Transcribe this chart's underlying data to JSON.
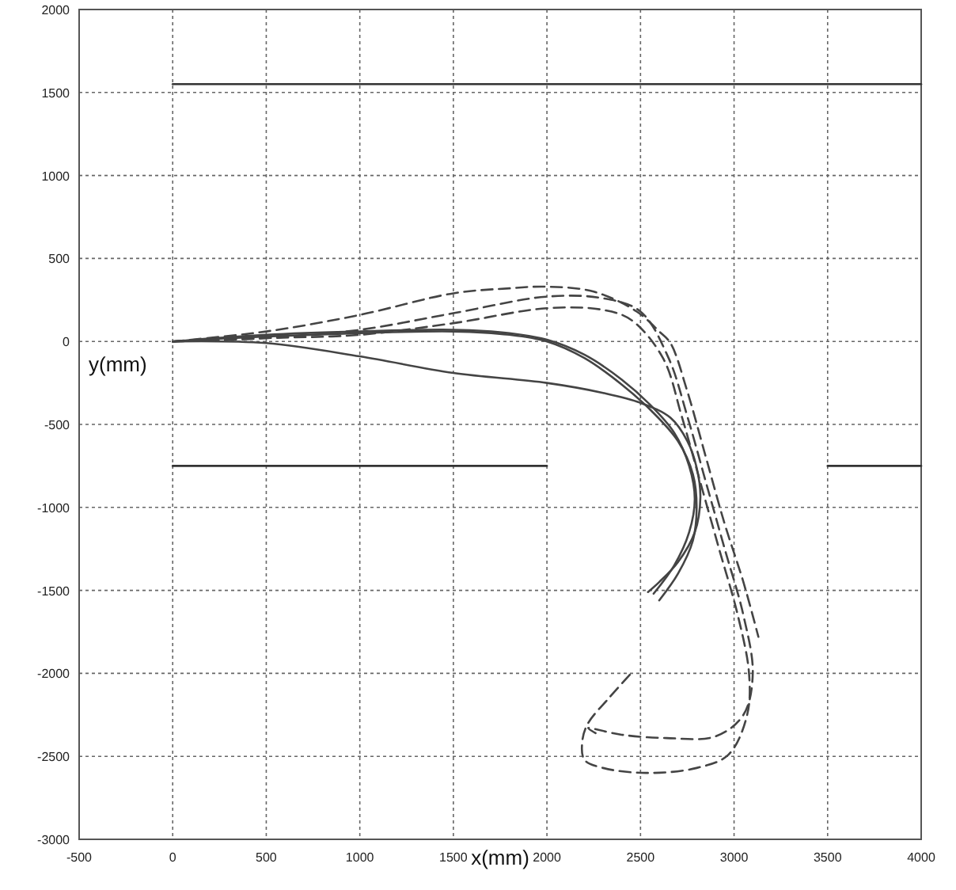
{
  "chart_data": {
    "type": "line",
    "xlabel": "x(mm)",
    "ylabel": "y(mm)",
    "xlim": [
      -500,
      4000
    ],
    "ylim": [
      -3000,
      2000
    ],
    "xticks": [
      -500,
      0,
      500,
      1000,
      1500,
      2000,
      2500,
      3000,
      3500,
      4000
    ],
    "yticks": [
      -3000,
      -2500,
      -2000,
      -1500,
      -1000,
      -500,
      0,
      500,
      1000,
      1500,
      2000
    ],
    "grid": true,
    "series": [
      {
        "color": "#333333",
        "line_style": "solid",
        "x": [
          0,
          4000
        ],
        "values": [
          1550,
          1550
        ]
      },
      {
        "color": "#333333",
        "line_style": "solid",
        "x": [
          0,
          2000
        ],
        "values": [
          -750,
          -750
        ]
      },
      {
        "color": "#333333",
        "line_style": "solid",
        "x": [
          3500,
          4000
        ],
        "values": [
          -750,
          -750
        ]
      },
      {
        "color": "#444444",
        "line_style": "solid",
        "x": [
          0,
          500,
          1000,
          1500,
          2000,
          2300,
          2500,
          2660,
          2750,
          2800,
          2820,
          2790,
          2700,
          2600,
          2540
        ],
        "values": [
          0,
          -10,
          -90,
          -190,
          -250,
          -310,
          -370,
          -460,
          -600,
          -760,
          -940,
          -1150,
          -1330,
          -1450,
          -1510
        ]
      },
      {
        "color": "#444444",
        "line_style": "solid",
        "x": [
          0,
          500,
          1000,
          1500,
          1800,
          2000,
          2200,
          2400,
          2550,
          2680,
          2760,
          2790,
          2760,
          2680,
          2570
        ],
        "values": [
          0,
          40,
          60,
          70,
          50,
          10,
          -80,
          -230,
          -380,
          -550,
          -750,
          -950,
          -1150,
          -1350,
          -1520
        ]
      },
      {
        "color": "#444444",
        "line_style": "solid",
        "x": [
          0,
          500,
          1000,
          1500,
          1800,
          2000,
          2200,
          2400,
          2560,
          2700,
          2780,
          2800,
          2780,
          2700,
          2600
        ],
        "values": [
          0,
          30,
          50,
          60,
          40,
          0,
          -100,
          -260,
          -420,
          -600,
          -800,
          -1000,
          -1200,
          -1400,
          -1560
        ]
      },
      {
        "color": "#444444",
        "line_style": "dashed",
        "x": [
          0,
          500,
          1000,
          1500,
          1800,
          2000,
          2250,
          2480,
          2600,
          2660,
          2750,
          2850,
          2950,
          3050,
          3130
        ],
        "values": [
          0,
          60,
          160,
          290,
          320,
          330,
          300,
          180,
          60,
          -10,
          -300,
          -700,
          -1100,
          -1450,
          -1780
        ]
      },
      {
        "color": "#444444",
        "line_style": "dashed",
        "x": [
          0,
          500,
          1000,
          1500,
          2000,
          2300,
          2500,
          2650,
          2750,
          2850,
          2950,
          3050,
          3100,
          3050,
          2900,
          2640,
          2400,
          2220,
          2260
        ],
        "values": [
          0,
          20,
          70,
          170,
          270,
          260,
          180,
          -100,
          -450,
          -850,
          -1250,
          -1650,
          -2000,
          -2250,
          -2380,
          -2390,
          -2370,
          -2330,
          -2360
        ]
      },
      {
        "color": "#444444",
        "line_style": "dashed",
        "x": [
          0,
          500,
          1000,
          1500,
          2000,
          2300,
          2450,
          2620,
          2720,
          2820,
          2920,
          3020,
          3080,
          3070,
          2970,
          2800,
          2530,
          2300,
          2200,
          2190,
          2220,
          2330,
          2450
        ],
        "values": [
          0,
          20,
          40,
          110,
          200,
          190,
          130,
          -100,
          -450,
          -850,
          -1250,
          -1650,
          -2000,
          -2250,
          -2490,
          -2570,
          -2600,
          -2570,
          -2520,
          -2400,
          -2300,
          -2150,
          -2000
        ]
      }
    ]
  }
}
